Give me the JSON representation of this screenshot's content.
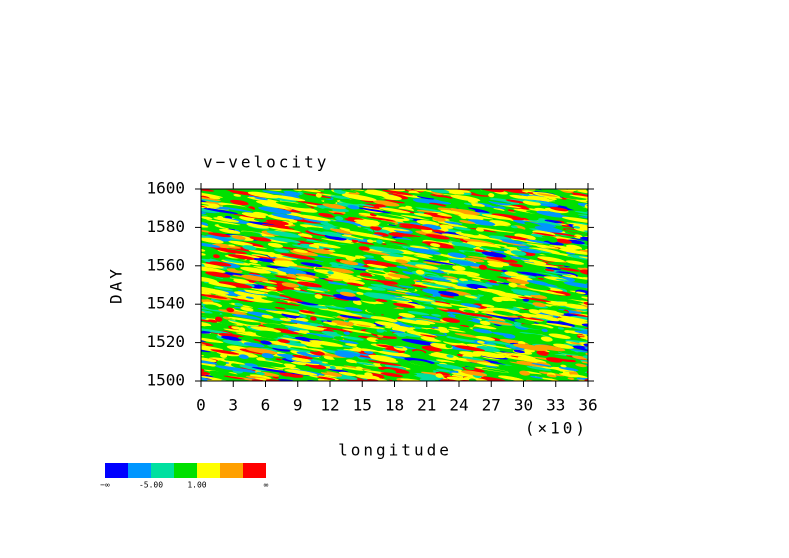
{
  "chart_data": {
    "type": "contour",
    "title": "v−velocity",
    "x_label": "longitude",
    "y_label": "DAY",
    "x_multiplier": "(×10)",
    "xlim": [
      0,
      36
    ],
    "xticks": [
      0,
      3,
      6,
      9,
      12,
      15,
      18,
      21,
      24,
      27,
      30,
      33,
      36
    ],
    "ylim": [
      1500,
      1600
    ],
    "yticks": [
      1500,
      1520,
      1540,
      1560,
      1580,
      1600
    ],
    "colorbar": {
      "colors": [
        "#0000ff",
        "#0096ff",
        "#00e0a0",
        "#00e000",
        "#ffff00",
        "#ffa000",
        "#ff0000"
      ],
      "labels": [
        "−∞",
        null,
        "-5.00",
        null,
        "1.00",
        null,
        null,
        "∞"
      ]
    }
  }
}
